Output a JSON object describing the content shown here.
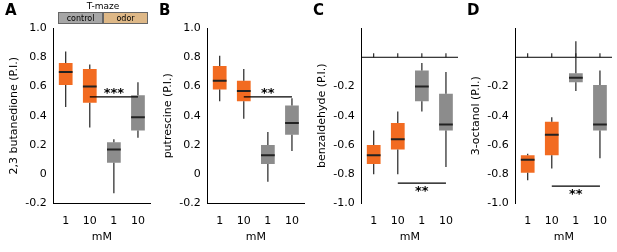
{
  "chart_data": [
    {
      "type": "box",
      "panel": "A",
      "y_label": "2,3 butanedione (P.I.)",
      "x_label": "mM",
      "categories": [
        "1",
        "10",
        "1",
        "10"
      ],
      "colors": [
        "#f26b21",
        "#f26b21",
        "#8c8c8c",
        "#8c8c8c"
      ],
      "boxes": [
        {
          "min": 0.46,
          "q1": 0.61,
          "median": 0.7,
          "q3": 0.76,
          "max": 0.84
        },
        {
          "min": 0.32,
          "q1": 0.49,
          "median": 0.6,
          "q3": 0.72,
          "max": 0.75
        },
        {
          "min": -0.13,
          "q1": 0.08,
          "median": 0.17,
          "q3": 0.22,
          "max": 0.24
        },
        {
          "min": 0.25,
          "q1": 0.3,
          "median": 0.39,
          "q3": 0.54,
          "max": 0.63
        }
      ],
      "ylim": [
        -0.2,
        1.0
      ],
      "yticks": [
        -0.2,
        0,
        0.2,
        0.4,
        0.6,
        0.8,
        {
          "value": 1.0,
          "label": "1.0"
        }
      ],
      "significance": {
        "label": "***",
        "from": 1,
        "to": 3,
        "y": 0.53
      },
      "grid": false,
      "inset": {
        "title": "T-maze",
        "labels": [
          "control",
          "odor"
        ]
      }
    },
    {
      "type": "box",
      "panel": "B",
      "y_label": "putrescine (P.I.)",
      "x_label": "mM",
      "categories": [
        "1",
        "10",
        "1",
        "10"
      ],
      "colors": [
        "#f26b21",
        "#f26b21",
        "#8c8c8c",
        "#8c8c8c"
      ],
      "boxes": [
        {
          "min": 0.5,
          "q1": 0.58,
          "median": 0.64,
          "q3": 0.74,
          "max": 0.81
        },
        {
          "min": 0.38,
          "q1": 0.5,
          "median": 0.57,
          "q3": 0.64,
          "max": 0.72
        },
        {
          "min": -0.05,
          "q1": 0.07,
          "median": 0.13,
          "q3": 0.2,
          "max": 0.29
        },
        {
          "min": 0.16,
          "q1": 0.27,
          "median": 0.35,
          "q3": 0.47,
          "max": 0.52
        }
      ],
      "ylim": [
        -0.2,
        1.0
      ],
      "yticks": [
        -0.2,
        0,
        0.2,
        0.4,
        0.6,
        0.8,
        {
          "value": 1.0,
          "label": "1.0"
        }
      ],
      "significance": {
        "label": "**",
        "from": 1,
        "to": 3,
        "y": 0.53
      },
      "grid": false
    },
    {
      "type": "box",
      "panel": "C",
      "y_label": "benzaldehyde (P.I.)",
      "x_label": "mM",
      "categories": [
        "1",
        "10",
        "1",
        "10"
      ],
      "colors": [
        "#f26b21",
        "#f26b21",
        "#8c8c8c",
        "#8c8c8c"
      ],
      "boxes": [
        {
          "min": -0.8,
          "q1": -0.73,
          "median": -0.67,
          "q3": -0.6,
          "max": -0.5
        },
        {
          "min": -0.8,
          "q1": -0.63,
          "median": -0.56,
          "q3": -0.45,
          "max": -0.37
        },
        {
          "min": -0.37,
          "q1": -0.3,
          "median": -0.2,
          "q3": -0.09,
          "max": -0.04
        },
        {
          "min": -0.75,
          "q1": -0.5,
          "median": -0.46,
          "q3": -0.25,
          "max": -0.1
        }
      ],
      "ylim": [
        -1.0,
        0.2
      ],
      "yticks": [
        {
          "value": -1.0,
          "label": "-1.0"
        },
        -0.8,
        -0.6,
        -0.4,
        -0.2
      ],
      "significance": {
        "label": "**",
        "from": 1,
        "to": 3,
        "y": -0.86
      },
      "grid": false
    },
    {
      "type": "box",
      "panel": "D",
      "y_label": "3-octanol (P.I.)",
      "x_label": "mM",
      "categories": [
        "1",
        "10",
        "1",
        "10"
      ],
      "colors": [
        "#f26b21",
        "#f26b21",
        "#8c8c8c",
        "#8c8c8c"
      ],
      "boxes": [
        {
          "min": -0.84,
          "q1": -0.79,
          "median": -0.7,
          "q3": -0.67,
          "max": -0.66
        },
        {
          "min": -0.76,
          "q1": -0.67,
          "median": -0.53,
          "q3": -0.44,
          "max": -0.41
        },
        {
          "min": -0.23,
          "q1": -0.17,
          "median": -0.14,
          "q3": -0.11,
          "max": 0.11
        },
        {
          "min": -0.69,
          "q1": -0.5,
          "median": -0.46,
          "q3": -0.19,
          "max": -0.09
        }
      ],
      "ylim": [
        -1.0,
        0.2
      ],
      "yticks": [
        {
          "value": -1.0,
          "label": "-1.0"
        },
        -0.8,
        -0.6,
        -0.4,
        -0.2
      ],
      "significance": {
        "label": "**",
        "from": 1,
        "to": 3,
        "y": -0.88
      },
      "grid": false
    }
  ]
}
